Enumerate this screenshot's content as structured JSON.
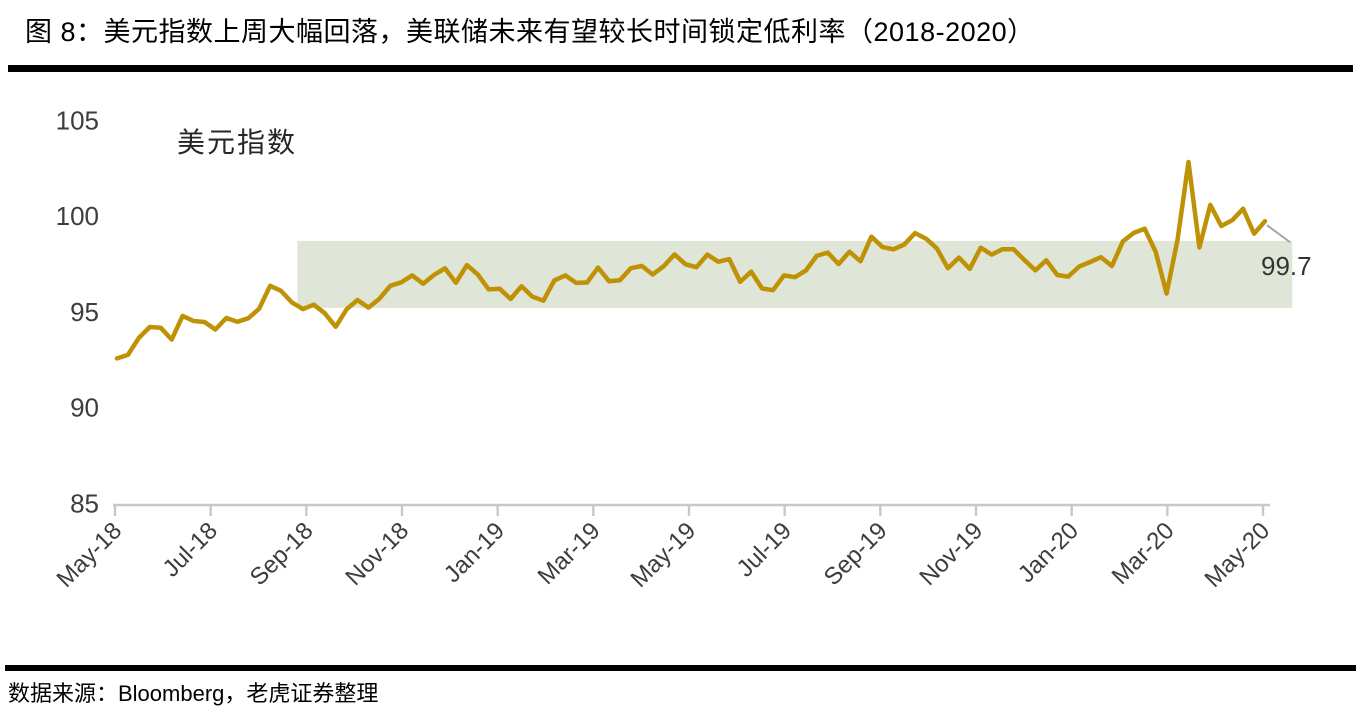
{
  "page": {
    "figure_title": "图 8：美元指数上周大幅回落，美联储未来有望较长时间锁定低利率（2018-2020）",
    "source_note": "数据来源：Bloomberg，老虎证券整理"
  },
  "colors": {
    "line": "#BF9206",
    "band": "#DFE5D7",
    "axis": "#C8C8C8",
    "leader": "#A6A6A6",
    "tick_text": "#3D3D3D",
    "label_text": "#262626"
  },
  "chart_data": {
    "type": "line",
    "inner_label": "美元指数",
    "end_label": "99.7",
    "frequency": "weekly",
    "y_ticks": [
      85,
      90,
      95,
      100,
      105
    ],
    "ylim": [
      85,
      106
    ],
    "x_tick_labels": [
      "May-18",
      "Jul-18",
      "Sep-18",
      "Nov-18",
      "Jan-19",
      "Mar-19",
      "May-19",
      "Jul-19",
      "Sep-19",
      "Nov-19",
      "Jan-20",
      "Mar-20",
      "May-20"
    ],
    "highlight_band": {
      "value_top": 98.7,
      "value_bottom": 95.2,
      "start_index": 16.5,
      "end_index": 107.5
    },
    "series": [
      {
        "name": "美元指数",
        "values": [
          92.57,
          92.75,
          93.64,
          94.21,
          94.17,
          93.55,
          94.79,
          94.52,
          94.47,
          94.08,
          94.68,
          94.48,
          94.66,
          95.16,
          96.36,
          96.1,
          95.49,
          95.14,
          95.37,
          94.93,
          94.22,
          95.13,
          95.62,
          95.22,
          95.68,
          96.36,
          96.54,
          96.9,
          96.47,
          96.93,
          97.27,
          96.52,
          97.44,
          96.95,
          96.17,
          96.2,
          95.67,
          96.34,
          95.79,
          95.58,
          96.64,
          96.9,
          96.51,
          96.53,
          97.31,
          96.6,
          96.65,
          97.28,
          97.4,
          96.95,
          97.38,
          98.0,
          97.48,
          97.33,
          97.99,
          97.61,
          97.75,
          96.56,
          97.1,
          96.22,
          96.13,
          96.9,
          96.81,
          97.15,
          97.92,
          98.09,
          97.49,
          98.14,
          97.64,
          98.92,
          98.39,
          98.26,
          98.51,
          99.11,
          98.82,
          98.3,
          97.28,
          97.83,
          97.24,
          98.35,
          97.99,
          98.27,
          98.27,
          97.7,
          97.17,
          97.69,
          96.92,
          96.84,
          97.36,
          97.6,
          97.85,
          97.39,
          98.68,
          99.12,
          99.34,
          98.13,
          95.95,
          98.75,
          102.82,
          98.36,
          100.58,
          99.48,
          99.78,
          100.38,
          99.08,
          99.73
        ]
      }
    ]
  }
}
